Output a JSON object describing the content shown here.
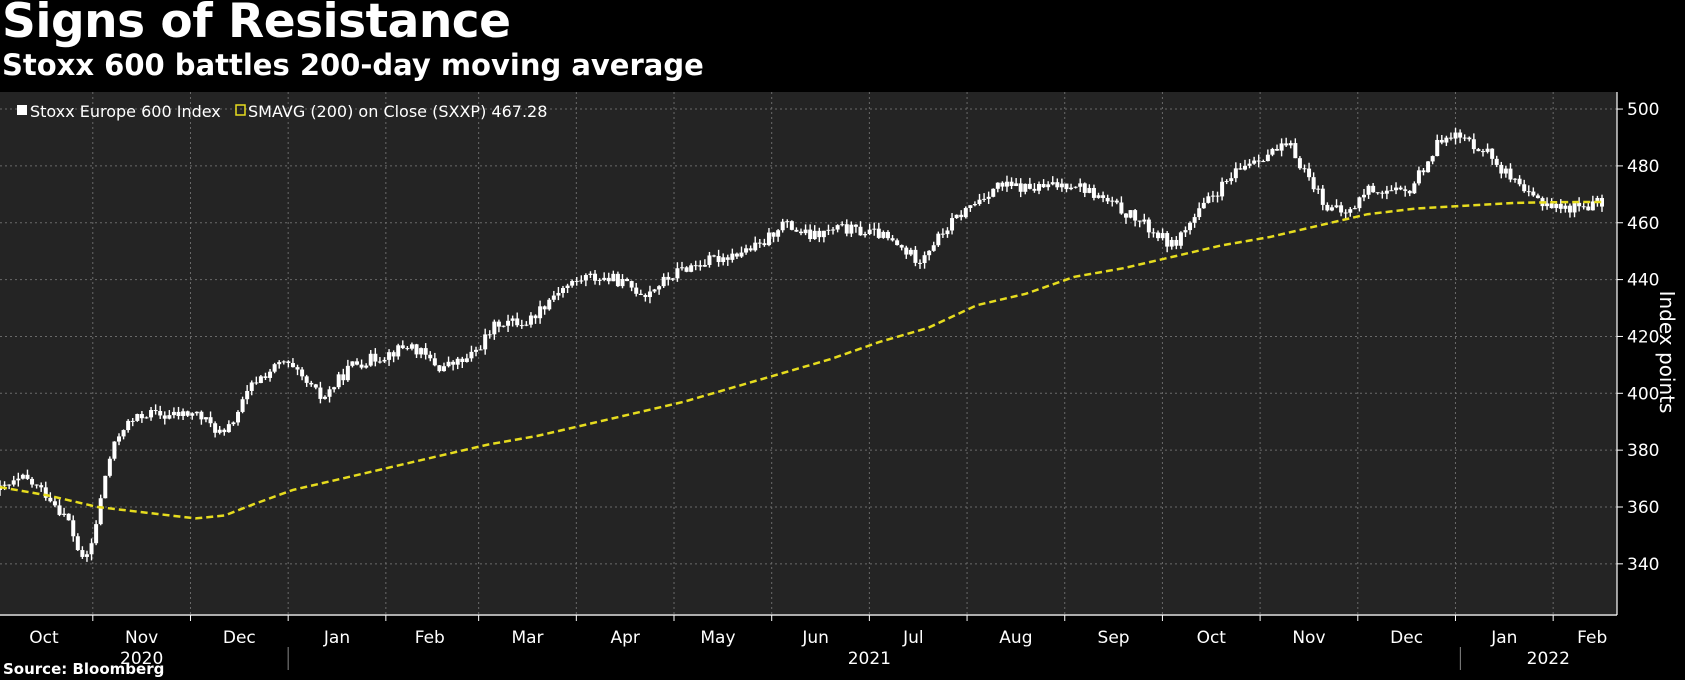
{
  "chart_data": {
    "type": "line",
    "title": "Signs of Resistance",
    "subtitle": "Stoxx 600 battles 200-day moving average",
    "source": "Source: Bloomberg",
    "ylabel": "Index points",
    "ylim": [
      322,
      506
    ],
    "yticks": [
      340,
      360,
      380,
      400,
      420,
      440,
      460,
      480,
      500
    ],
    "xrange": [
      0,
      16.4
    ],
    "months": [
      {
        "label": "Oct",
        "pos": 0.45
      },
      {
        "label": "Nov",
        "pos": 1.45
      },
      {
        "label": "Dec",
        "pos": 2.45
      },
      {
        "label": "Jan",
        "pos": 3.45
      },
      {
        "label": "Feb",
        "pos": 4.4
      },
      {
        "label": "Mar",
        "pos": 5.4
      },
      {
        "label": "Apr",
        "pos": 6.4
      },
      {
        "label": "May",
        "pos": 7.35
      },
      {
        "label": "Jun",
        "pos": 8.35
      },
      {
        "label": "Jul",
        "pos": 9.35
      },
      {
        "label": "Aug",
        "pos": 10.4
      },
      {
        "label": "Sep",
        "pos": 11.4
      },
      {
        "label": "Oct",
        "pos": 12.4
      },
      {
        "label": "Nov",
        "pos": 13.4
      },
      {
        "label": "Dec",
        "pos": 14.4
      },
      {
        "label": "Jan",
        "pos": 15.4
      },
      {
        "label": "Feb",
        "pos": 16.3
      }
    ],
    "month_boundaries": [
      0.95,
      1.95,
      2.95,
      3.95,
      4.9,
      5.9,
      6.9,
      7.9,
      8.9,
      9.9,
      10.9,
      11.9,
      12.9,
      13.9,
      14.9,
      15.9
    ],
    "years": [
      {
        "label": "2020",
        "pos": 1.45
      },
      {
        "label": "2021",
        "pos": 8.9
      },
      {
        "label": "2022",
        "pos": 15.85
      }
    ],
    "year_boundaries": [
      2.95,
      14.95
    ],
    "legend": [
      {
        "name": "Stoxx Europe 600 Index",
        "color": "#ffffff"
      },
      {
        "name": "SMAVG (200)  on Close (SXXP) 467.28",
        "color": "#e6dc1e"
      }
    ],
    "series": [
      {
        "name": "Stoxx Europe 600 Index",
        "style": "ohlc",
        "color": "#ffffff",
        "x": [
          0.0,
          0.25,
          0.5,
          0.7,
          0.85,
          0.95,
          1.1,
          1.25,
          1.35,
          1.5,
          1.7,
          2.0,
          2.3,
          2.6,
          2.9,
          3.0,
          3.3,
          3.6,
          3.9,
          4.2,
          4.5,
          4.8,
          5.1,
          5.4,
          5.7,
          6.0,
          6.3,
          6.6,
          7.0,
          7.4,
          7.8,
          8.0,
          8.3,
          8.6,
          9.0,
          9.4,
          9.8,
          10.2,
          10.6,
          11.0,
          11.3,
          11.6,
          12.0,
          12.4,
          12.8,
          13.2,
          13.6,
          13.8,
          14.0,
          14.4,
          14.8,
          15.2,
          15.6,
          16.0,
          16.4
        ],
        "values": [
          366,
          370,
          364,
          355,
          340,
          348,
          375,
          388,
          390,
          393,
          392,
          393,
          385,
          404,
          411,
          408,
          398,
          410,
          413,
          417,
          409,
          412,
          425,
          425,
          436,
          441,
          440,
          435,
          444,
          448,
          452,
          460,
          455,
          458,
          456,
          447,
          462,
          473,
          472,
          474,
          468,
          462,
          452,
          469,
          482,
          487,
          465,
          463,
          472,
          470,
          492,
          486,
          470,
          465,
          467
        ]
      },
      {
        "name": "SMAVG (200)",
        "style": "dashed",
        "color": "#e6dc1e",
        "x": [
          0.0,
          0.5,
          1.0,
          1.5,
          2.0,
          2.3,
          2.6,
          3.0,
          3.5,
          4.0,
          4.5,
          5.0,
          5.5,
          6.0,
          6.5,
          7.0,
          7.5,
          8.0,
          8.5,
          9.0,
          9.5,
          10.0,
          10.5,
          11.0,
          11.5,
          12.0,
          12.5,
          13.0,
          13.5,
          14.0,
          14.5,
          15.0,
          15.5,
          16.0,
          16.4
        ],
        "values": [
          367,
          364,
          360,
          358,
          356,
          357,
          361,
          366,
          370,
          374,
          378,
          382,
          385,
          389,
          393,
          397,
          402,
          407,
          412,
          418,
          423,
          431,
          435,
          441,
          444,
          448,
          452,
          455,
          459,
          463,
          465,
          466,
          467,
          467.28,
          467.3
        ]
      }
    ]
  }
}
